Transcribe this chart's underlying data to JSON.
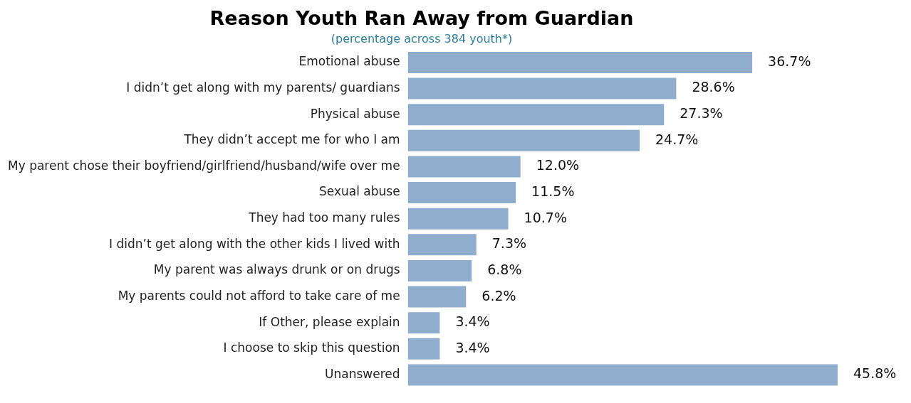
{
  "chart_data": {
    "type": "bar",
    "orientation": "horizontal",
    "title": "Reason Youth Ran Away from Guardian",
    "subtitle": "(percentage across 384 youth*)",
    "categories": [
      "Emotional abuse",
      "I didn’t get along with my parents/ guardians",
      "Physical abuse",
      "They didn’t accept me for who I am",
      "My parent chose their boyfriend/girlfriend/husband/wife over me",
      "Sexual abuse",
      "They had too many rules",
      "I didn’t get along with the other kids I lived with",
      "My parent was always drunk or on drugs",
      "My parents could not afford to take care of me",
      "If Other, please explain",
      "I choose to skip this question",
      "Unanswered"
    ],
    "values": [
      36.7,
      28.6,
      27.3,
      24.7,
      12.0,
      11.5,
      10.7,
      7.3,
      6.8,
      6.2,
      3.4,
      3.4,
      45.8
    ],
    "value_labels": [
      "36.7%",
      "28.6%",
      "27.3%",
      "24.7%",
      "12.0%",
      "11.5%",
      "10.7%",
      "7.3%",
      "6.8%",
      "6.2%",
      "3.4%",
      "3.4%",
      "45.8%"
    ],
    "color": "#8fadcc",
    "grid": false,
    "legend": false,
    "tick_labels": "y"
  }
}
